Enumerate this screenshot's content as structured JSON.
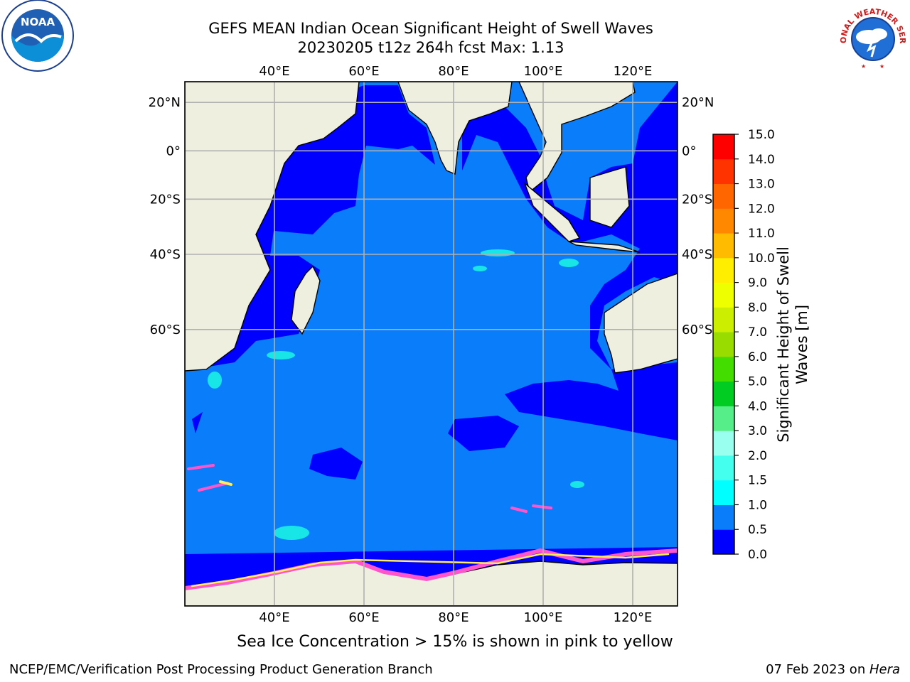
{
  "header": {
    "title_line1": "GEFS MEAN Indian Ocean Significant Height of Swell Waves",
    "title_line2": "20230205 t12z 264h fcst   Max: 1.13"
  },
  "map": {
    "lon_ticks": [
      "40°E",
      "60°E",
      "80°E",
      "100°E",
      "120°E"
    ],
    "lat_ticks": [
      "20°N",
      "0°",
      "20°S",
      "40°S",
      "60°S"
    ],
    "lon_values": [
      40,
      60,
      80,
      100,
      120
    ],
    "lat_values": [
      20,
      0,
      -20,
      -40,
      -60
    ],
    "lon_range": [
      20,
      130
    ],
    "lat_range": [
      28,
      -86
    ],
    "grid": true,
    "colors": {
      "ocean_base": "#0a7dfa",
      "ocean_low": "#0000ff",
      "ocean_cyan": "#18e6e6",
      "land": "#efefe0",
      "ice_pink": "#ff55cc",
      "ice_yellow": "#ffee55",
      "grid": "#b0b0b0"
    }
  },
  "colorbar": {
    "label_line1": "Significant Height of Swell",
    "label_line2": "Waves [m]",
    "ticks": [
      "0.0",
      "0.5",
      "1.0",
      "1.5",
      "2.0",
      "3.0",
      "4.0",
      "5.0",
      "6.0",
      "7.0",
      "8.0",
      "9.0",
      "10.0",
      "11.0",
      "12.0",
      "13.0",
      "14.0",
      "15.0"
    ],
    "colors": [
      "#0000ff",
      "#0a7dfa",
      "#00ffff",
      "#44ffee",
      "#99ffee",
      "#55ee88",
      "#00cc22",
      "#44dd00",
      "#99dd00",
      "#ccee00",
      "#eeff00",
      "#ffee00",
      "#ffbb00",
      "#ff8800",
      "#ff6600",
      "#ff3300",
      "#ff0000"
    ]
  },
  "note": "Sea Ice Concentration > 15% is shown in pink to yellow",
  "footer": {
    "left": "NCEP/EMC/Verification Post Processing Product Generation Branch",
    "date": "07 Feb 2023 on ",
    "host": "Hera"
  },
  "logos": {
    "left_icon": "noaa-logo-icon",
    "left_text": "NOAA",
    "right_icon": "national-weather-service-logo-icon",
    "right_text": "NATIONAL WEATHER SERVICE"
  }
}
